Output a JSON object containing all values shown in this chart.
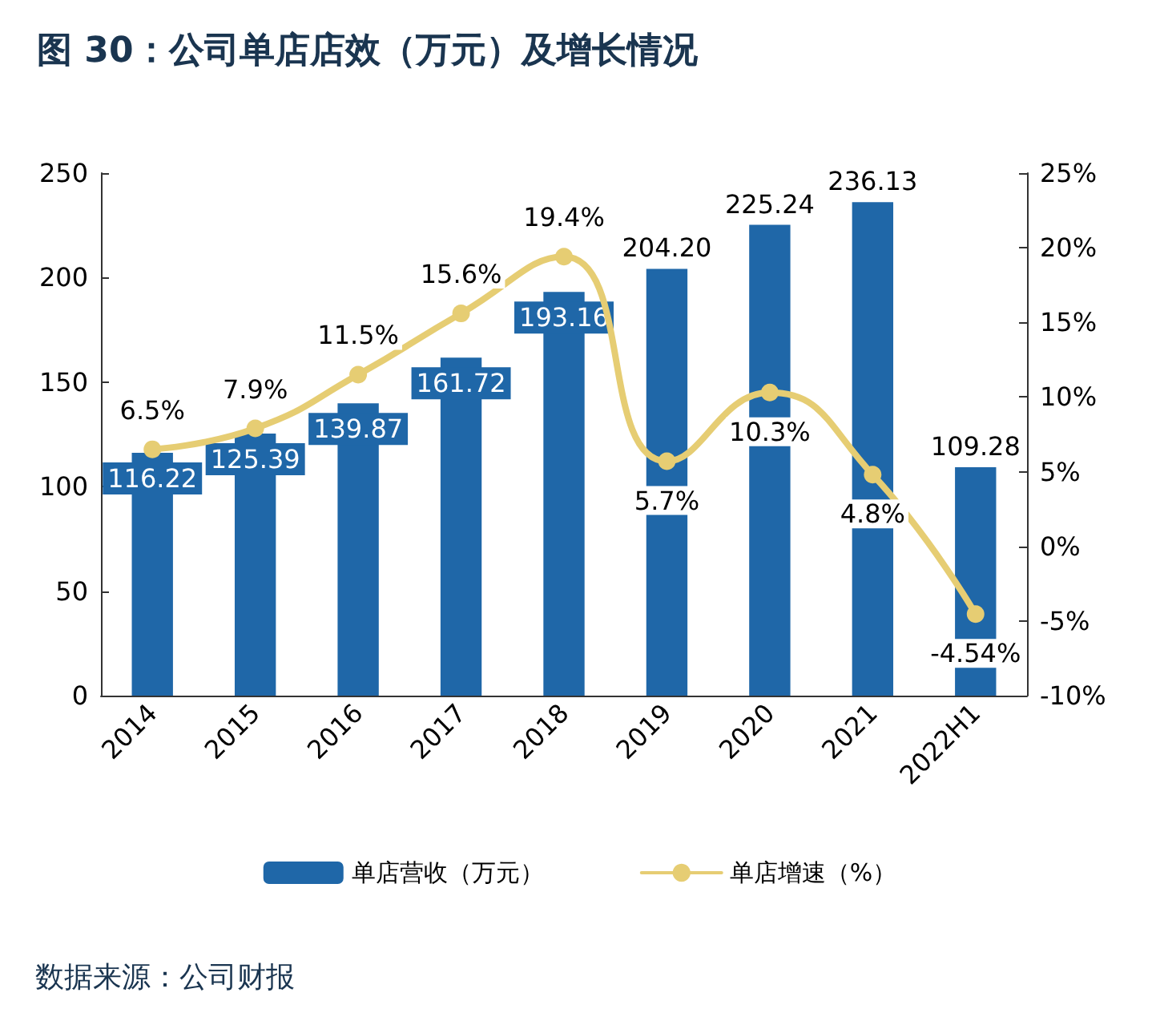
{
  "chart_data": {
    "type": "bar",
    "title": "图 30：公司单店店效（万元）及增长情况",
    "categories": [
      "2014",
      "2015",
      "2016",
      "2017",
      "2018",
      "2019",
      "2020",
      "2021",
      "2022H1"
    ],
    "series": [
      {
        "name": "单店营收（万元）",
        "color": "#1f67a8",
        "values": [
          116.22,
          125.39,
          139.87,
          161.72,
          193.16,
          204.2,
          225.24,
          236.13,
          109.28
        ],
        "value_labels": [
          "116.22",
          "125.39",
          "139.87",
          "161.72",
          "193.16",
          "204.20",
          "225.24",
          "236.13",
          "109.28"
        ]
      },
      {
        "name": "单店增速（%）",
        "type": "line",
        "axis": "y2",
        "color": "#e6cd73",
        "values": [
          6.5,
          7.9,
          11.5,
          15.6,
          19.4,
          5.7,
          10.3,
          4.8,
          -4.54
        ],
        "value_labels": [
          "6.5%",
          "7.9%",
          "11.5%",
          "15.6%",
          "19.4%",
          "5.7%",
          "10.3%",
          "4.8%",
          "-4.54%"
        ]
      }
    ],
    "ylim": [
      0,
      250
    ],
    "yticks": [
      0,
      50,
      100,
      150,
      200,
      250
    ],
    "y2lim": [
      -10,
      25
    ],
    "y2ticks": [
      {
        "value": -10,
        "label": "-10%"
      },
      {
        "value": -5,
        "label": "-5%"
      },
      {
        "value": 0,
        "label": "0%"
      },
      {
        "value": 5,
        "label": "5%"
      },
      {
        "value": 10,
        "label": "10%"
      },
      {
        "value": 15,
        "label": "15%"
      },
      {
        "value": 20,
        "label": "20%"
      },
      {
        "value": 25,
        "label": "25%"
      }
    ],
    "grid": false,
    "legend": "bottom",
    "marker": "circle",
    "line_style": "solid",
    "annotations": [
      "数据来源：公司财报"
    ]
  }
}
